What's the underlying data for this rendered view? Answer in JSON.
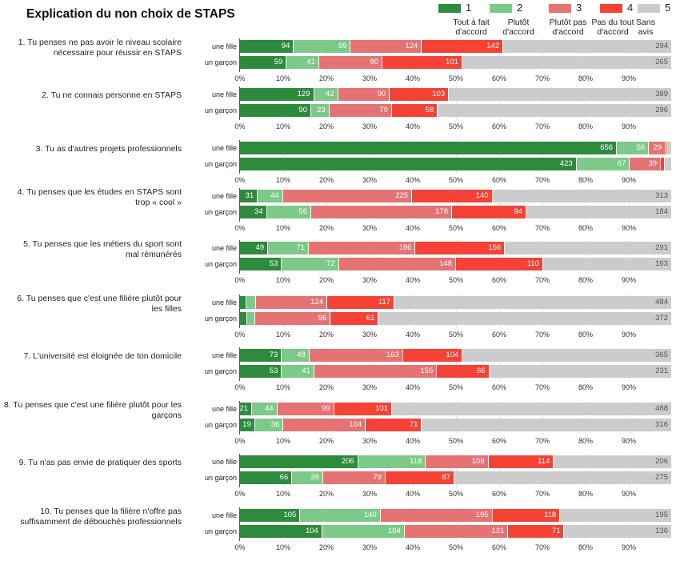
{
  "chart_data": {
    "type": "bar",
    "orientation": "horizontal",
    "stacked": "percent",
    "title": "Explication du non choix de STAPS",
    "xlabel": "",
    "ylabel": "",
    "xlim": [
      0,
      100
    ],
    "x_ticks": [
      "0%",
      "10%",
      "20%",
      "30%",
      "40%",
      "50%",
      "60%",
      "70%",
      "80%",
      "90%"
    ],
    "legend_position": "top-right",
    "legend": [
      {
        "key": "1",
        "label": "Tout à fait d'accord",
        "label_lines": [
          "Tout à fait",
          "d'accord"
        ],
        "color": "#2e8b3e"
      },
      {
        "key": "2",
        "label": "Plutôt d'accord",
        "label_lines": [
          "Plutôt",
          "d'accord"
        ],
        "color": "#7dc98a"
      },
      {
        "key": "3",
        "label": "Plutôt pas d'accord",
        "label_lines": [
          "Plutôt pas",
          "d'accord"
        ],
        "color": "#e57373"
      },
      {
        "key": "4",
        "label": "Pas du tout d'accord",
        "label_lines": [
          "Pas du tout",
          "d'accord"
        ],
        "color": "#f44336"
      },
      {
        "key": "5",
        "label": "Sans avis",
        "label_lines": [
          "Sans",
          "avis"
        ],
        "color": "#cccccc"
      }
    ],
    "series_groups": [
      "une fille",
      "un garçon"
    ],
    "questions": [
      {
        "label_lines": [
          "1. Tu penses ne pas avoir le niveau scolaire",
          "nécessaire pour réussir en STAPS"
        ],
        "rows": [
          {
            "group": "une fille",
            "values": [
              94,
              99,
              124,
              142,
              294
            ]
          },
          {
            "group": "un garçon",
            "values": [
              59,
              41,
              80,
              101,
              265
            ]
          }
        ]
      },
      {
        "label_lines": [
          "2. Tu ne connais personne en STAPS"
        ],
        "rows": [
          {
            "group": "une fille",
            "values": [
              129,
              42,
              90,
              103,
              389
            ]
          },
          {
            "group": "un garçon",
            "values": [
              90,
              23,
              79,
              58,
              296
            ]
          }
        ]
      },
      {
        "label_lines": [
          "3. Tu as d'autres projets professionnels"
        ],
        "rows": [
          {
            "group": "une fille",
            "values": [
              656,
              56,
              29,
              3,
              8
            ]
          },
          {
            "group": "un garçon",
            "values": [
              423,
              67,
              39,
              5,
              9
            ]
          }
        ]
      },
      {
        "label_lines": [
          "4. Tu penses que les études en STAPS sont",
          "trop « cool »"
        ],
        "rows": [
          {
            "group": "une fille",
            "values": [
              31,
              44,
              225,
              140,
              313
            ]
          },
          {
            "group": "un garçon",
            "values": [
              34,
              56,
              178,
              94,
              184
            ]
          }
        ]
      },
      {
        "label_lines": [
          "5. Tu penses que les métiers du sport sont",
          "mal rémunérés"
        ],
        "rows": [
          {
            "group": "une fille",
            "values": [
              49,
              71,
              186,
              156,
              291
            ]
          },
          {
            "group": "un garçon",
            "values": [
              53,
              72,
              148,
              110,
              163
            ]
          }
        ]
      },
      {
        "label_lines": [
          "6. Tu penses que c'est une filière plutôt pour",
          "les filles"
        ],
        "rows": [
          {
            "group": "une fille",
            "values": [
              11,
              17,
              124,
              117,
              484
            ]
          },
          {
            "group": "un garçon",
            "values": [
              9,
              10,
              96,
              61,
              372
            ]
          }
        ]
      },
      {
        "label_lines": [
          "7. L'université est éloignée de ton domicile"
        ],
        "rows": [
          {
            "group": "une fille",
            "values": [
              73,
              48,
              163,
              104,
              365
            ]
          },
          {
            "group": "un garçon",
            "values": [
              53,
              41,
              155,
              66,
              231
            ]
          }
        ]
      },
      {
        "label_lines": [
          "8. Tu penses que c'est une filière plutôt pour les",
          "garçons"
        ],
        "rows": [
          {
            "group": "une fille",
            "values": [
              21,
              44,
              99,
              101,
              488
            ]
          },
          {
            "group": "un garçon",
            "values": [
              19,
              36,
              104,
              71,
              316
            ]
          }
        ]
      },
      {
        "label_lines": [
          "9. Tu n'as pas envie de pratiquer des sports"
        ],
        "rows": [
          {
            "group": "une fille",
            "values": [
              206,
              118,
              109,
              114,
              206
            ]
          },
          {
            "group": "un garçon",
            "values": [
              66,
              39,
              79,
              87,
              275
            ]
          }
        ]
      },
      {
        "label_lines": [
          "10. Tu penses que la filière n'offre pas",
          "suffisamment de débouchés professionnels"
        ],
        "rows": [
          {
            "group": "une fille",
            "values": [
              105,
              140,
              195,
              118,
              195
            ]
          },
          {
            "group": "un garçon",
            "values": [
              104,
              104,
              131,
              71,
              136
            ]
          }
        ]
      }
    ]
  }
}
